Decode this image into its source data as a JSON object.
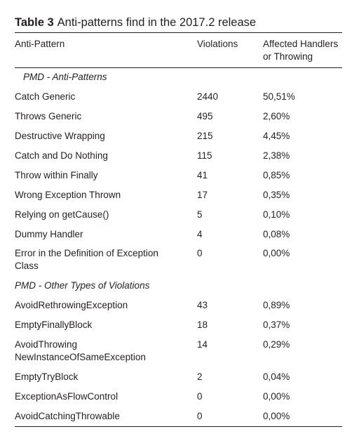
{
  "caption": {
    "label": "Table 3",
    "text": "Anti-patterns find in the 2017.2 release"
  },
  "headers": {
    "col1": "Anti-Pattern",
    "col2": "Violations",
    "col3_line1": "Affected Handlers",
    "col3_line2": "or Throwing"
  },
  "sections": {
    "pmd_anti": "PMD - Anti-Patterns",
    "pmd_other": "PMD - Other Types of Violations"
  },
  "rows": [
    {
      "name": "Catch Generic",
      "violations": "2440",
      "affected": "50,51%"
    },
    {
      "name": "Throws Generic",
      "violations": "495",
      "affected": "2,60%"
    },
    {
      "name": "Destructive Wrapping",
      "violations": "215",
      "affected": "4,45%"
    },
    {
      "name": "Catch and Do Nothing",
      "violations": "115",
      "affected": "2,38%"
    },
    {
      "name": "Throw within Finally",
      "violations": "41",
      "affected": "0,85%"
    },
    {
      "name": "Wrong Exception Thrown",
      "violations": "17",
      "affected": "0,35%"
    },
    {
      "name": "Relying on getCause()",
      "violations": "5",
      "affected": "0,10%"
    },
    {
      "name": "Dummy Handler",
      "violations": "4",
      "affected": "0,08%"
    },
    {
      "name_line1": "Error in the Definition of Exception",
      "name_line2": "Class",
      "violations": "0",
      "affected": "0,00%"
    },
    {
      "name": "AvoidRethrowingException",
      "violations": "43",
      "affected": "0,89%"
    },
    {
      "name": "EmptyFinallyBlock",
      "violations": "18",
      "affected": "0,37%"
    },
    {
      "name_line1": "AvoidThrowing",
      "name_line2": "NewInstanceOfSameException",
      "violations": "14",
      "affected": "0,29%"
    },
    {
      "name": "EmptyTryBlock",
      "violations": "2",
      "affected": "0,04%"
    },
    {
      "name": "ExceptionAsFlowControl",
      "violations": "0",
      "affected": "0,00%"
    },
    {
      "name": "AvoidCatchingThrowable",
      "violations": "0",
      "affected": "0,00%"
    }
  ]
}
